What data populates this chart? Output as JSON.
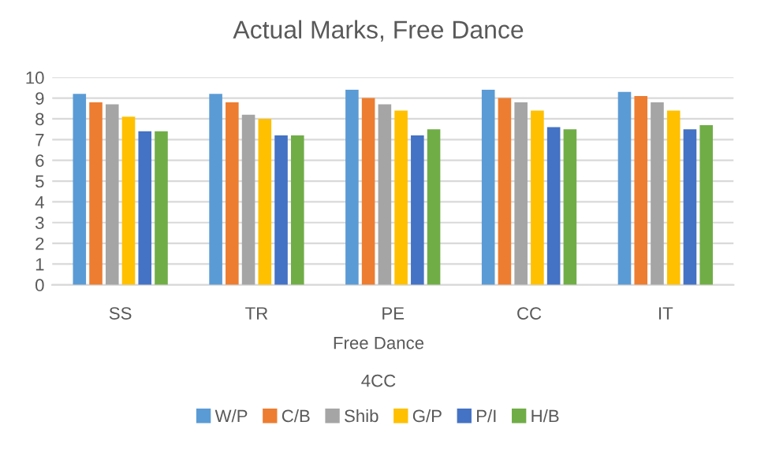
{
  "chart_data": {
    "type": "bar",
    "title": "Actual Marks, Free Dance",
    "categories": [
      "SS",
      "TR",
      "PE",
      "CC",
      "IT"
    ],
    "xlabel": "Free Dance",
    "annotations": [
      "4CC"
    ],
    "series": [
      {
        "name": "W/P",
        "color": "#5b9bd5",
        "values": [
          9.2,
          9.2,
          9.4,
          9.4,
          9.3
        ]
      },
      {
        "name": "C/B",
        "color": "#ed7d31",
        "values": [
          8.8,
          8.8,
          9.0,
          9.0,
          9.1
        ]
      },
      {
        "name": "Shib",
        "color": "#a5a5a5",
        "values": [
          8.7,
          8.2,
          8.7,
          8.8,
          8.8
        ]
      },
      {
        "name": "G/P",
        "color": "#ffc000",
        "values": [
          8.1,
          8.0,
          8.4,
          8.4,
          8.4
        ]
      },
      {
        "name": "P/I",
        "color": "#4472c4",
        "values": [
          7.4,
          7.2,
          7.2,
          7.6,
          7.5
        ]
      },
      {
        "name": "H/B",
        "color": "#70ad47",
        "values": [
          7.4,
          7.2,
          7.5,
          7.5,
          7.7
        ]
      }
    ],
    "ylim": [
      0,
      10
    ],
    "yticks": [
      0,
      1,
      2,
      3,
      4,
      5,
      6,
      7,
      8,
      9,
      10
    ],
    "grid": "y",
    "legend": "bottom"
  }
}
